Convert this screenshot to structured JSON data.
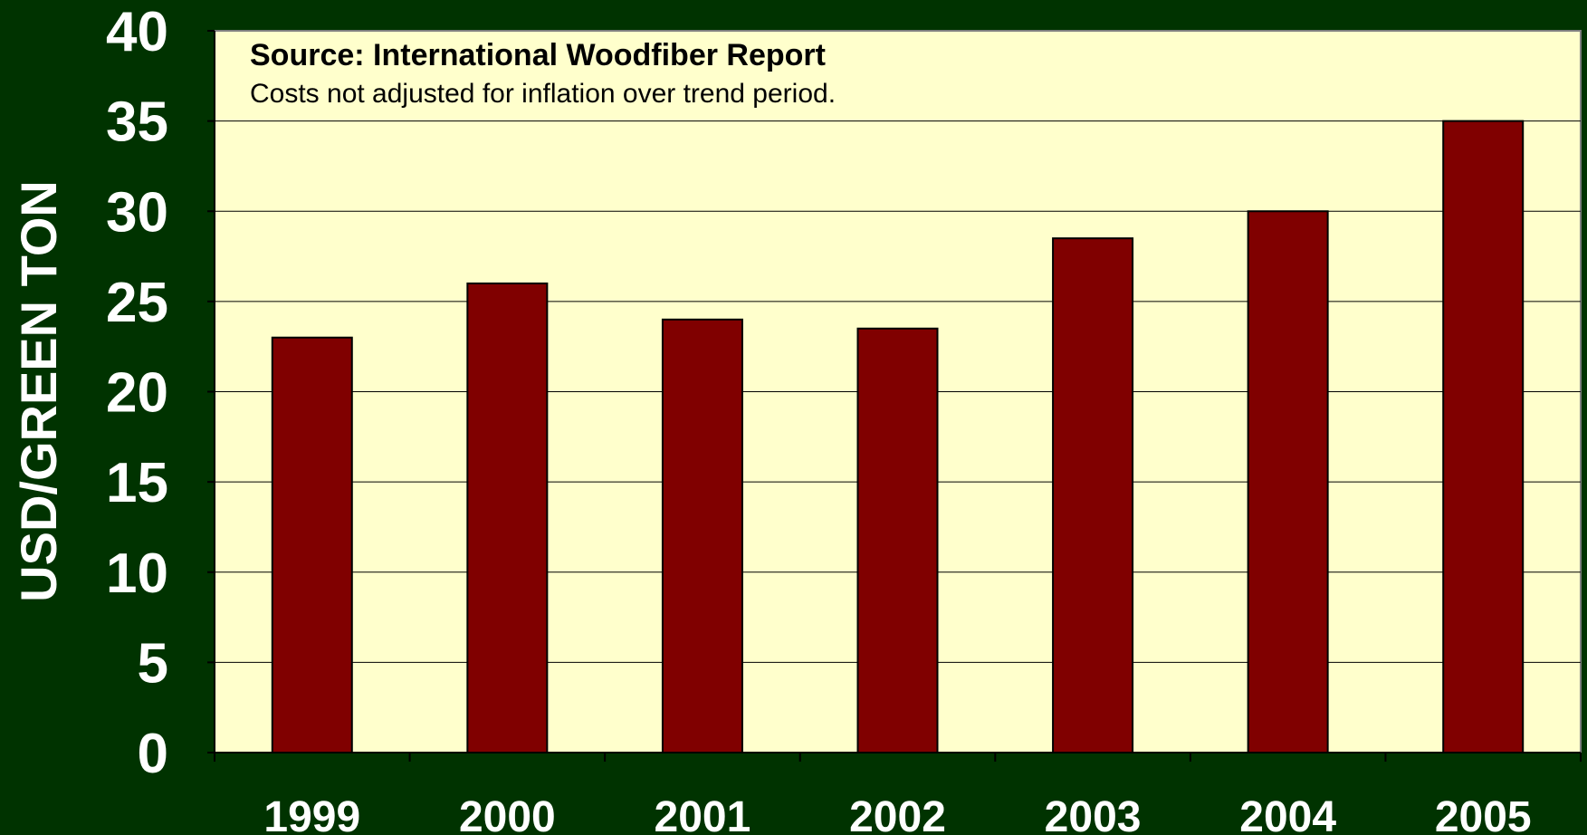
{
  "chart_data": {
    "type": "bar",
    "categories": [
      "1999",
      "2000",
      "2001",
      "2002",
      "2003",
      "2004",
      "2005"
    ],
    "values": [
      23,
      26,
      24,
      23.5,
      28.5,
      30,
      35
    ],
    "ylabel": "USD/GREEN TON",
    "xlabel": "",
    "ylim": [
      0,
      40
    ],
    "yticks": [
      0,
      5,
      10,
      15,
      20,
      25,
      30,
      35,
      40
    ],
    "grid": true,
    "annotation": {
      "title": "Source: International Woodfiber Report",
      "subtitle": "Costs not adjusted for inflation over trend period."
    },
    "colors": {
      "background": "#003300",
      "plot_area": "#ffffcc",
      "bar": "#800000"
    }
  }
}
